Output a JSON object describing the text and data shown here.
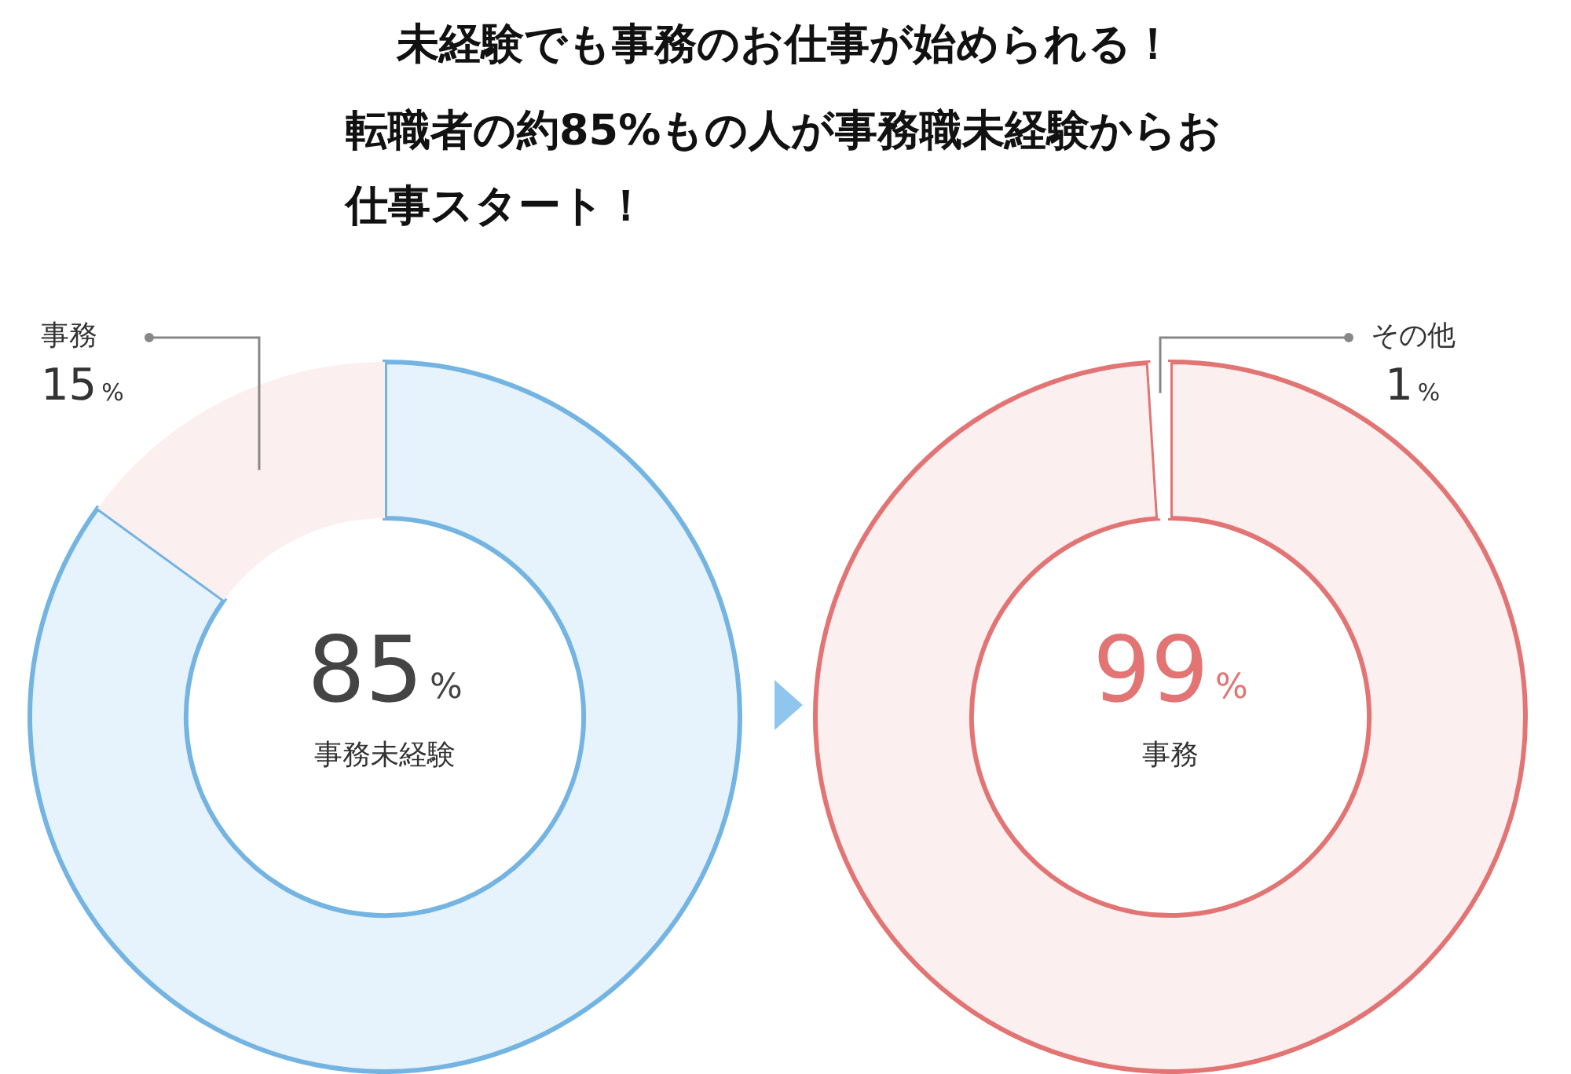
{
  "chart_data": [
    {
      "type": "donut",
      "title": "未経験でも事務のお仕事が始められる！",
      "subtitle": "転職者の約85%もの人が事務職未経験からお仕事スタート！",
      "categories": [
        "事務未経験",
        "事務"
      ],
      "values": [
        85,
        15
      ],
      "colors": [
        "#e6f3fc",
        "#fcefef"
      ],
      "value_labels": [
        "85%",
        "15%"
      ]
    },
    {
      "type": "donut",
      "categories": [
        "事務",
        "その他"
      ],
      "values": [
        99,
        1
      ],
      "colors": [
        "#fcefef",
        "#ffffff"
      ],
      "value_labels": [
        "99%",
        "1%"
      ]
    }
  ]
}
